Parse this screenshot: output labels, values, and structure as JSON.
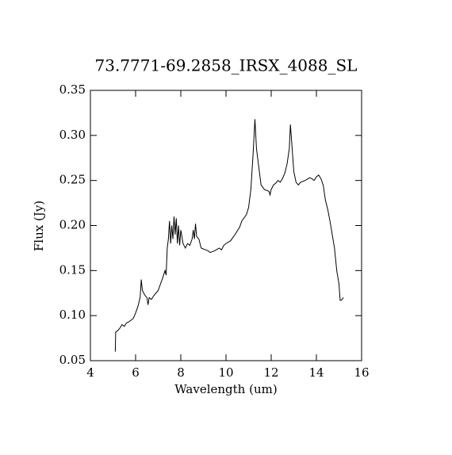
{
  "chart_data": {
    "type": "line",
    "title": "73.7771-69.2858_IRSX_4088_SL",
    "x_label": "Wavelength (um)",
    "y_label": "Flux (Jy)",
    "xlim": [
      4,
      16
    ],
    "xticks": [
      4,
      6,
      8,
      10,
      12,
      14,
      16
    ],
    "ylim": [
      0.05,
      0.35
    ],
    "yticks": [
      0.05,
      {
        "value": 0.1,
        "label": "0.10"
      },
      0.15,
      {
        "value": 0.2,
        "label": "0.20"
      },
      0.25,
      {
        "value": 0.3,
        "label": "0.30"
      },
      0.35
    ],
    "color": "#000000",
    "x": [
      5.1,
      5.12,
      5.2,
      5.3,
      5.4,
      5.5,
      5.6,
      5.7,
      5.8,
      5.9,
      6.0,
      6.1,
      6.2,
      6.25,
      6.3,
      6.4,
      6.5,
      6.55,
      6.6,
      6.7,
      6.8,
      6.9,
      7.0,
      7.1,
      7.2,
      7.3,
      7.35,
      7.4,
      7.45,
      7.5,
      7.55,
      7.6,
      7.65,
      7.7,
      7.75,
      7.8,
      7.85,
      7.9,
      7.95,
      8.0,
      8.1,
      8.2,
      8.3,
      8.4,
      8.5,
      8.55,
      8.6,
      8.65,
      8.7,
      8.8,
      8.9,
      9.0,
      9.2,
      9.3,
      9.5,
      9.7,
      9.8,
      9.9,
      10.0,
      10.2,
      10.4,
      10.6,
      10.7,
      10.9,
      11.0,
      11.1,
      11.2,
      11.28,
      11.35,
      11.45,
      11.55,
      11.7,
      11.9,
      11.95,
      12.0,
      12.1,
      12.2,
      12.3,
      12.4,
      12.5,
      12.6,
      12.7,
      12.8,
      12.85,
      12.9,
      13.0,
      13.1,
      13.2,
      13.3,
      13.5,
      13.7,
      13.8,
      13.9,
      14.0,
      14.1,
      14.2,
      14.3,
      14.4,
      14.5,
      14.6,
      14.8,
      14.9,
      15.0,
      15.05,
      15.1,
      15.2
    ],
    "values": [
      0.06,
      0.082,
      0.083,
      0.086,
      0.09,
      0.088,
      0.092,
      0.093,
      0.095,
      0.097,
      0.103,
      0.11,
      0.12,
      0.14,
      0.128,
      0.123,
      0.12,
      0.112,
      0.12,
      0.118,
      0.122,
      0.125,
      0.128,
      0.135,
      0.142,
      0.15,
      0.145,
      0.175,
      0.185,
      0.205,
      0.18,
      0.2,
      0.185,
      0.21,
      0.19,
      0.208,
      0.18,
      0.2,
      0.178,
      0.195,
      0.18,
      0.175,
      0.18,
      0.178,
      0.185,
      0.195,
      0.185,
      0.202,
      0.188,
      0.185,
      0.175,
      0.174,
      0.172,
      0.17,
      0.172,
      0.175,
      0.173,
      0.178,
      0.18,
      0.183,
      0.19,
      0.198,
      0.205,
      0.212,
      0.22,
      0.24,
      0.28,
      0.318,
      0.285,
      0.265,
      0.245,
      0.24,
      0.238,
      0.234,
      0.24,
      0.245,
      0.247,
      0.25,
      0.248,
      0.252,
      0.258,
      0.268,
      0.285,
      0.312,
      0.295,
      0.26,
      0.248,
      0.245,
      0.248,
      0.25,
      0.253,
      0.252,
      0.25,
      0.254,
      0.256,
      0.252,
      0.245,
      0.228,
      0.218,
      0.205,
      0.175,
      0.15,
      0.135,
      0.117,
      0.117,
      0.12
    ]
  }
}
